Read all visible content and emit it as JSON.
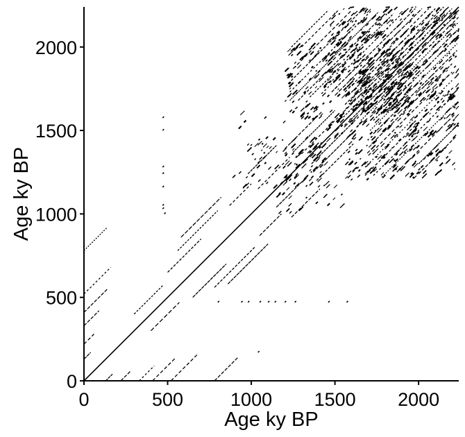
{
  "chart_data": {
    "type": "recurrence-plot",
    "title": "",
    "xlabel": "Age ky BP",
    "ylabel": "Age ky BP",
    "xlim": [
      0,
      2240
    ],
    "ylim": [
      0,
      2240
    ],
    "x_ticks": [
      0,
      500,
      1000,
      1500,
      2000
    ],
    "y_ticks": [
      0,
      500,
      1000,
      1500,
      2000
    ],
    "x_tick_labels": [
      "0",
      "500",
      "1000",
      "1500",
      "2000"
    ],
    "y_tick_labels": [
      "0",
      "500",
      "1000",
      "1500",
      "2000"
    ],
    "grid": false,
    "symmetric": true,
    "main_diagonal": {
      "from": 0,
      "to": 2240
    },
    "diagonal_line_segments": [
      {
        "lag": 410,
        "start": 0,
        "end": 140
      },
      {
        "lag": 330,
        "start": 0,
        "end": 90
      },
      {
        "lag": 220,
        "start": 0,
        "end": 60
      },
      {
        "lag": 130,
        "start": 0,
        "end": 40
      },
      {
        "lag": 520,
        "start": 0,
        "end": 160
      },
      {
        "lag": 780,
        "start": 0,
        "end": 140
      },
      {
        "lag": 100,
        "start": 300,
        "end": 470
      },
      {
        "lag": 150,
        "start": 500,
        "end": 700
      },
      {
        "lag": 220,
        "start": 560,
        "end": 800
      },
      {
        "lag": 280,
        "start": 580,
        "end": 820
      },
      {
        "lag": 180,
        "start": 870,
        "end": 1000
      },
      {
        "lag": 110,
        "start": 1040,
        "end": 1230
      },
      {
        "lag": 260,
        "start": 980,
        "end": 1150
      },
      {
        "lag": 190,
        "start": 1200,
        "end": 1420
      },
      {
        "lag": 60,
        "start": 1300,
        "end": 1550
      },
      {
        "lag": 120,
        "start": 1250,
        "end": 1500
      },
      {
        "lag": 30,
        "start": 1550,
        "end": 2200
      },
      {
        "lag": 60,
        "start": 1550,
        "end": 2180
      },
      {
        "lag": 95,
        "start": 1560,
        "end": 2150
      },
      {
        "lag": 130,
        "start": 1580,
        "end": 2100
      },
      {
        "lag": 170,
        "start": 1560,
        "end": 2060
      },
      {
        "lag": 210,
        "start": 1500,
        "end": 2020
      },
      {
        "lag": 250,
        "start": 1480,
        "end": 1980
      },
      {
        "lag": 300,
        "start": 1420,
        "end": 1900
      },
      {
        "lag": 350,
        "start": 1350,
        "end": 1850
      },
      {
        "lag": 400,
        "start": 1280,
        "end": 1800
      },
      {
        "lag": 450,
        "start": 1230,
        "end": 1760
      },
      {
        "lag": 500,
        "start": 1230,
        "end": 1720
      },
      {
        "lag": 560,
        "start": 1220,
        "end": 1660
      },
      {
        "lag": 620,
        "start": 1250,
        "end": 1600
      },
      {
        "lag": 700,
        "start": 1300,
        "end": 1520
      },
      {
        "lag": 760,
        "start": 1240,
        "end": 1460
      }
    ],
    "recurrence_regions": [
      {
        "x": [
          1600,
          1950
        ],
        "y": [
          1600,
          1950
        ],
        "density": 0.85
      },
      {
        "x": [
          1450,
          2240
        ],
        "y": [
          1450,
          2240
        ],
        "density": 0.45
      },
      {
        "x": [
          1200,
          1500
        ],
        "y": [
          1550,
          2000
        ],
        "density": 0.4
      },
      {
        "x": [
          1550,
          2000
        ],
        "y": [
          1200,
          1500
        ],
        "density": 0.4
      },
      {
        "x": [
          1200,
          1450
        ],
        "y": [
          1150,
          1450
        ],
        "density": 0.5
      },
      {
        "x": [
          1000,
          1200
        ],
        "y": [
          1150,
          1550
        ],
        "density": 0.15
      },
      {
        "x": [
          1150,
          1550
        ],
        "y": [
          1000,
          1200
        ],
        "density": 0.15
      },
      {
        "x": [
          880,
          1100
        ],
        "y": [
          1100,
          1600
        ],
        "density": 0.12
      },
      {
        "x": [
          2000,
          2240
        ],
        "y": [
          1200,
          1400
        ],
        "density": 0.25
      }
    ],
    "recurrence_points": [
      {
        "x": 470,
        "y": 1575
      },
      {
        "x": 470,
        "y": 1500
      },
      {
        "x": 470,
        "y": 1280
      },
      {
        "x": 470,
        "y": 1240
      },
      {
        "x": 470,
        "y": 1160
      },
      {
        "x": 470,
        "y": 1050
      },
      {
        "x": 470,
        "y": 1030
      },
      {
        "x": 480,
        "y": 1000
      },
      {
        "x": 800,
        "y": 470
      },
      {
        "x": 940,
        "y": 470
      },
      {
        "x": 980,
        "y": 470
      },
      {
        "x": 1050,
        "y": 470
      },
      {
        "x": 1100,
        "y": 470
      },
      {
        "x": 1140,
        "y": 470
      },
      {
        "x": 1200,
        "y": 470
      },
      {
        "x": 1260,
        "y": 470
      },
      {
        "x": 1460,
        "y": 470
      },
      {
        "x": 1570,
        "y": 470
      },
      {
        "x": 1040,
        "y": 170
      }
    ]
  }
}
